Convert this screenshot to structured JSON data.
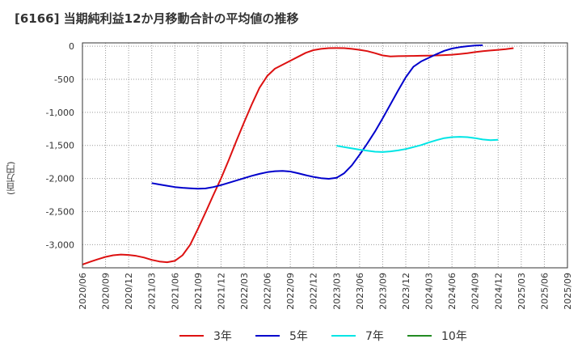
{
  "chart_data": {
    "type": "line",
    "title": "[6166]  当期純利益12か月移動合計の平均値の推移",
    "ylabel": "(百万円)",
    "xlabel": "",
    "ylim": [
      -3350,
      50
    ],
    "x_range": [
      "2020-06",
      "2025-09"
    ],
    "grid": true,
    "legend_position": "bottom",
    "y_ticks": [
      0,
      -500,
      -1000,
      -1500,
      -2000,
      -2500,
      -3000
    ],
    "y_tick_labels": [
      "0",
      "-500",
      "-1,000",
      "-1,500",
      "-2,000",
      "-2,500",
      "-3,000"
    ],
    "x_tick_labels": [
      "2020/06",
      "2020/09",
      "2020/12",
      "2021/03",
      "2021/06",
      "2021/09",
      "2021/12",
      "2022/03",
      "2022/06",
      "2022/09",
      "2022/12",
      "2023/03",
      "2023/06",
      "2023/09",
      "2023/12",
      "2024/03",
      "2024/06",
      "2024/09",
      "2024/12",
      "2025/03",
      "2025/06",
      "2025/09"
    ],
    "series": [
      {
        "name": "3年",
        "color": "#dd1111",
        "points": [
          [
            "2020-06",
            -3300
          ],
          [
            "2020-07",
            -3260
          ],
          [
            "2020-08",
            -3220
          ],
          [
            "2020-09",
            -3185
          ],
          [
            "2020-10",
            -3160
          ],
          [
            "2020-11",
            -3150
          ],
          [
            "2020-12",
            -3155
          ],
          [
            "2021-01",
            -3170
          ],
          [
            "2021-02",
            -3195
          ],
          [
            "2021-03",
            -3230
          ],
          [
            "2021-04",
            -3255
          ],
          [
            "2021-05",
            -3265
          ],
          [
            "2021-06",
            -3245
          ],
          [
            "2021-07",
            -3160
          ],
          [
            "2021-08",
            -3000
          ],
          [
            "2021-09",
            -2760
          ],
          [
            "2021-10",
            -2510
          ],
          [
            "2021-11",
            -2250
          ],
          [
            "2021-12",
            -2000
          ],
          [
            "2022-01",
            -1720
          ],
          [
            "2022-02",
            -1430
          ],
          [
            "2022-03",
            -1150
          ],
          [
            "2022-04",
            -880
          ],
          [
            "2022-05",
            -630
          ],
          [
            "2022-06",
            -450
          ],
          [
            "2022-07",
            -340
          ],
          [
            "2022-08",
            -280
          ],
          [
            "2022-09",
            -220
          ],
          [
            "2022-10",
            -160
          ],
          [
            "2022-11",
            -100
          ],
          [
            "2022-12",
            -60
          ],
          [
            "2023-01",
            -40
          ],
          [
            "2023-02",
            -30
          ],
          [
            "2023-03",
            -28
          ],
          [
            "2023-04",
            -30
          ],
          [
            "2023-05",
            -40
          ],
          [
            "2023-06",
            -55
          ],
          [
            "2023-07",
            -75
          ],
          [
            "2023-08",
            -105
          ],
          [
            "2023-09",
            -140
          ],
          [
            "2023-10",
            -155
          ],
          [
            "2023-11",
            -150
          ],
          [
            "2023-12",
            -148
          ],
          [
            "2024-01",
            -147
          ],
          [
            "2024-02",
            -145
          ],
          [
            "2024-03",
            -143
          ],
          [
            "2024-04",
            -140
          ],
          [
            "2024-05",
            -135
          ],
          [
            "2024-06",
            -128
          ],
          [
            "2024-07",
            -118
          ],
          [
            "2024-08",
            -105
          ],
          [
            "2024-09",
            -90
          ],
          [
            "2024-10",
            -75
          ],
          [
            "2024-11",
            -65
          ],
          [
            "2024-12",
            -55
          ],
          [
            "2025-01",
            -45
          ],
          [
            "2025-02",
            -30
          ]
        ]
      },
      {
        "name": "5年",
        "color": "#0000cc",
        "points": [
          [
            "2021-03",
            -2070
          ],
          [
            "2021-04",
            -2090
          ],
          [
            "2021-05",
            -2110
          ],
          [
            "2021-06",
            -2130
          ],
          [
            "2021-07",
            -2140
          ],
          [
            "2021-08",
            -2148
          ],
          [
            "2021-09",
            -2155
          ],
          [
            "2021-10",
            -2150
          ],
          [
            "2021-11",
            -2130
          ],
          [
            "2021-12",
            -2100
          ],
          [
            "2022-01",
            -2065
          ],
          [
            "2022-02",
            -2030
          ],
          [
            "2022-03",
            -1995
          ],
          [
            "2022-04",
            -1960
          ],
          [
            "2022-05",
            -1930
          ],
          [
            "2022-06",
            -1905
          ],
          [
            "2022-07",
            -1890
          ],
          [
            "2022-08",
            -1885
          ],
          [
            "2022-09",
            -1895
          ],
          [
            "2022-10",
            -1920
          ],
          [
            "2022-11",
            -1950
          ],
          [
            "2022-12",
            -1975
          ],
          [
            "2023-01",
            -1995
          ],
          [
            "2023-02",
            -2005
          ],
          [
            "2023-03",
            -1990
          ],
          [
            "2023-04",
            -1920
          ],
          [
            "2023-05",
            -1800
          ],
          [
            "2023-06",
            -1640
          ],
          [
            "2023-07",
            -1470
          ],
          [
            "2023-08",
            -1290
          ],
          [
            "2023-09",
            -1090
          ],
          [
            "2023-10",
            -880
          ],
          [
            "2023-11",
            -670
          ],
          [
            "2023-12",
            -470
          ],
          [
            "2024-01",
            -310
          ],
          [
            "2024-02",
            -230
          ],
          [
            "2024-03",
            -175
          ],
          [
            "2024-04",
            -120
          ],
          [
            "2024-05",
            -70
          ],
          [
            "2024-06",
            -35
          ],
          [
            "2024-07",
            -15
          ],
          [
            "2024-08",
            0
          ],
          [
            "2024-09",
            10
          ],
          [
            "2024-10",
            15
          ]
        ]
      },
      {
        "name": "7年",
        "color": "#00e5e5",
        "points": [
          [
            "2023-03",
            -1505
          ],
          [
            "2023-04",
            -1525
          ],
          [
            "2023-05",
            -1545
          ],
          [
            "2023-06",
            -1565
          ],
          [
            "2023-07",
            -1580
          ],
          [
            "2023-08",
            -1595
          ],
          [
            "2023-09",
            -1600
          ],
          [
            "2023-10",
            -1590
          ],
          [
            "2023-11",
            -1575
          ],
          [
            "2023-12",
            -1555
          ],
          [
            "2024-01",
            -1525
          ],
          [
            "2024-02",
            -1495
          ],
          [
            "2024-03",
            -1455
          ],
          [
            "2024-04",
            -1420
          ],
          [
            "2024-05",
            -1390
          ],
          [
            "2024-06",
            -1375
          ],
          [
            "2024-07",
            -1370
          ],
          [
            "2024-08",
            -1375
          ],
          [
            "2024-09",
            -1390
          ],
          [
            "2024-10",
            -1410
          ],
          [
            "2024-11",
            -1420
          ],
          [
            "2024-12",
            -1415
          ]
        ]
      },
      {
        "name": "10年",
        "color": "#228b22",
        "points": []
      }
    ]
  }
}
